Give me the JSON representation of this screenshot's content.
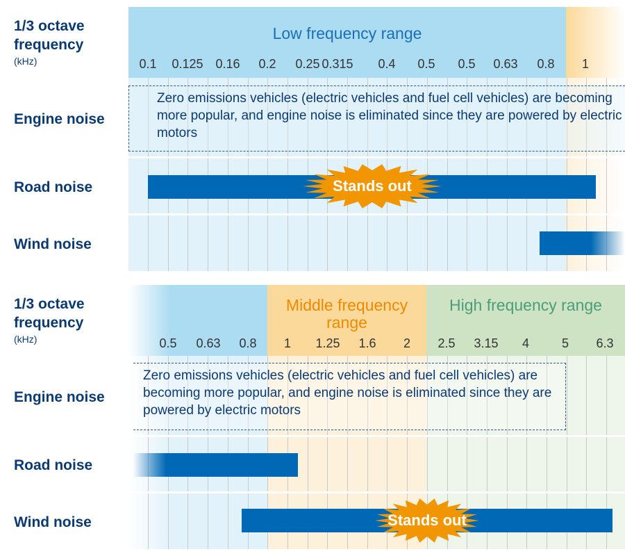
{
  "top": {
    "axis_label": "1/3 octave frequency",
    "axis_unit": "(kHz)",
    "range_low": "Low frequency range",
    "ticks": [
      "0.1",
      "0.125",
      "0.16",
      "0.2",
      "0.25",
      "0.315",
      "0.4",
      "0.5",
      "0.5",
      "0.63",
      "0.8",
      "1"
    ],
    "rows": {
      "engine": "Engine noise",
      "road": "Road noise",
      "wind": "Wind noise"
    },
    "engine_note": "Zero emissions vehicles (electric vehicles and fuel cell vehicles) are becoming more popular, and engine noise is eliminated since they are powered by electric motors",
    "road_badge": "Stands out"
  },
  "bottom": {
    "axis_label": "1/3 octave frequency",
    "axis_unit": "(kHz)",
    "range_mid": "Middle frequency range",
    "range_high": "High frequency range",
    "ticks": [
      "0.5",
      "0.63",
      "0.8",
      "1",
      "1.25",
      "1.6",
      "2",
      "2.5",
      "3.15",
      "4",
      "5",
      "6.3"
    ],
    "rows": {
      "engine": "Engine noise",
      "road": "Road noise",
      "wind": "Wind noise"
    },
    "engine_note": "Zero emissions vehicles (electric vehicles and fuel cell vehicles) are becoming more popular, and engine noise is eliminated since they are powered by electric motors",
    "wind_badge": "Stands out"
  },
  "colors": {
    "low": "#acdcf2",
    "mid": "#fbd99a",
    "high": "#cde3c4",
    "bar": "#0068b4",
    "badge": "#f29600",
    "text": "#0b3a73"
  }
}
